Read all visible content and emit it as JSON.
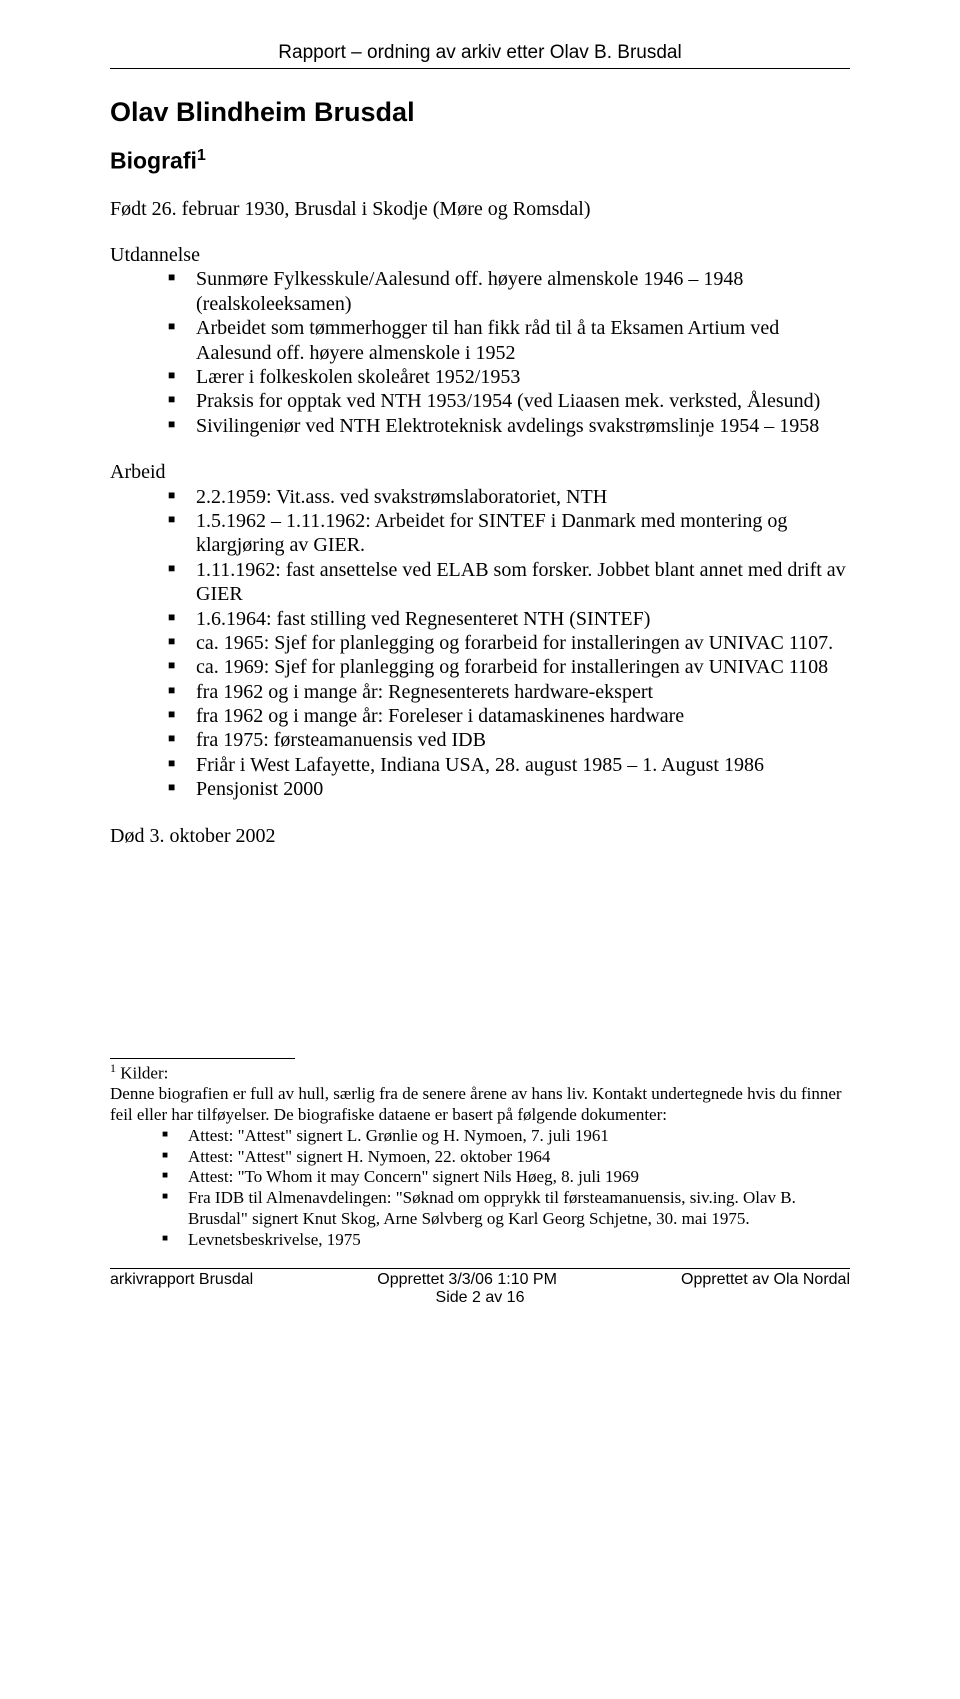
{
  "header": {
    "text": "Rapport – ordning av arkiv etter Olav B. Brusdal"
  },
  "title": "Olav Blindheim Brusdal",
  "subheading_html": "Biografi<sup>1</sup>",
  "born": "Født 26. februar 1930, Brusdal i Skodje (Møre og Romsdal)",
  "education": {
    "label": "Utdannelse",
    "items": [
      "Sunmøre Fylkesskule/Aalesund off. høyere almenskole 1946 – 1948 (realskoleeksamen)",
      "Arbeidet som tømmerhogger til han fikk råd til å ta Eksamen Artium ved Aalesund off. høyere almenskole i 1952",
      "Lærer i folkeskolen skoleåret 1952/1953",
      "Praksis for opptak ved NTH 1953/1954 (ved Liaasen mek. verksted, Ålesund)",
      "Sivilingeniør ved NTH Elektroteknisk avdelings svakstrømslinje 1954 – 1958"
    ]
  },
  "work": {
    "label": "Arbeid",
    "items": [
      "2.2.1959: Vit.ass. ved svakstrømslaboratoriet, NTH",
      "1.5.1962 – 1.11.1962: Arbeidet for SINTEF i Danmark med montering og klargjøring av GIER.",
      "1.11.1962: fast ansettelse ved ELAB som forsker. Jobbet blant annet med drift av GIER",
      "1.6.1964: fast stilling ved Regnesenteret NTH (SINTEF)",
      "ca. 1965: Sjef for planlegging og forarbeid for installeringen av UNIVAC 1107.",
      "ca. 1969: Sjef for planlegging og forarbeid for installeringen av UNIVAC 1108",
      "fra 1962 og i mange år: Regnesenterets hardware-ekspert",
      "fra 1962 og i mange år: Foreleser i datamaskinenes hardware",
      "fra 1975: førsteamanuensis ved IDB",
      "Friår i West Lafayette, Indiana USA, 28. august 1985 – 1. August 1986",
      "Pensjonist 2000"
    ]
  },
  "died": "Død 3. oktober 2002",
  "footnote": {
    "lead_html": "<sup>1</sup> Kilder:",
    "intro": "Denne biografien er full av hull, særlig fra de senere årene av hans liv. Kontakt undertegnede hvis du finner feil eller har tilføyelser. De biografiske dataene er basert på følgende dokumenter:",
    "items": [
      "Attest: \"Attest\" signert L. Grønlie og H. Nymoen, 7. juli 1961",
      "Attest: \"Attest\" signert H. Nymoen, 22. oktober 1964",
      "Attest: \"To Whom it may Concern\" signert Nils Høeg, 8. juli 1969",
      "Fra IDB til Almenavdelingen: \"Søknad om opprykk til førsteamanuensis, siv.ing. Olav B. Brusdal\" signert Knut Skog, Arne Sølvberg og Karl Georg Schjetne, 30. mai 1975.",
      "Levnetsbeskrivelse, 1975"
    ]
  },
  "footer": {
    "left": "arkivrapport Brusdal",
    "center": "Opprettet 3/3/06 1:10 PM",
    "right": "Opprettet av Ola Nordal",
    "page": "Side 2 av 16"
  }
}
